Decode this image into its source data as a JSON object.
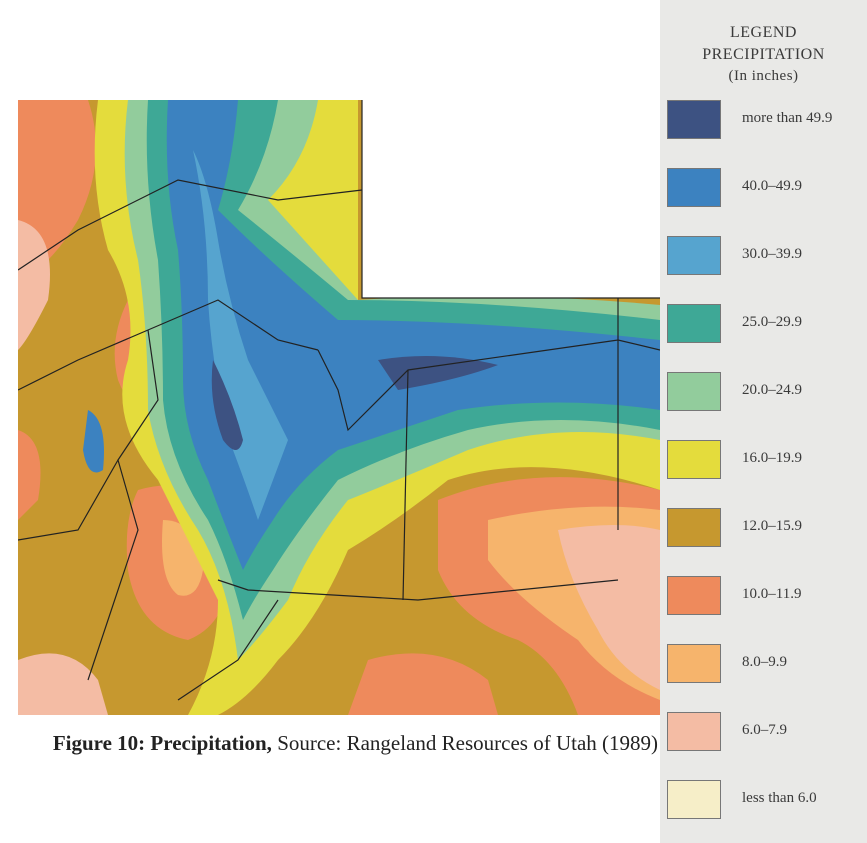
{
  "legend": {
    "title": "LEGEND",
    "subtitle": "PRECIPITATION",
    "units": "(In inches)",
    "items": [
      {
        "label": "more than 49.9",
        "color": "#3d5282"
      },
      {
        "label": "40.0–49.9",
        "color": "#3c82c0"
      },
      {
        "label": "30.0–39.9",
        "color": "#56a4cf"
      },
      {
        "label": "25.0–29.9",
        "color": "#3ea896"
      },
      {
        "label": "20.0–24.9",
        "color": "#92cc9c"
      },
      {
        "label": "16.0–19.9",
        "color": "#e4dc3c"
      },
      {
        "label": "12.0–15.9",
        "color": "#c6982f"
      },
      {
        "label": "10.0–11.9",
        "color": "#ee8a5c"
      },
      {
        "label": "8.0–9.9",
        "color": "#f6b46c"
      },
      {
        "label": "6.0–7.9",
        "color": "#f4bca4"
      },
      {
        "label": "less than 6.0",
        "color": "#f6eec8"
      }
    ]
  },
  "caption": {
    "figure": "Figure 10: Precipitation,",
    "source": "Source: Rangeland Resources of Utah (1989)"
  }
}
